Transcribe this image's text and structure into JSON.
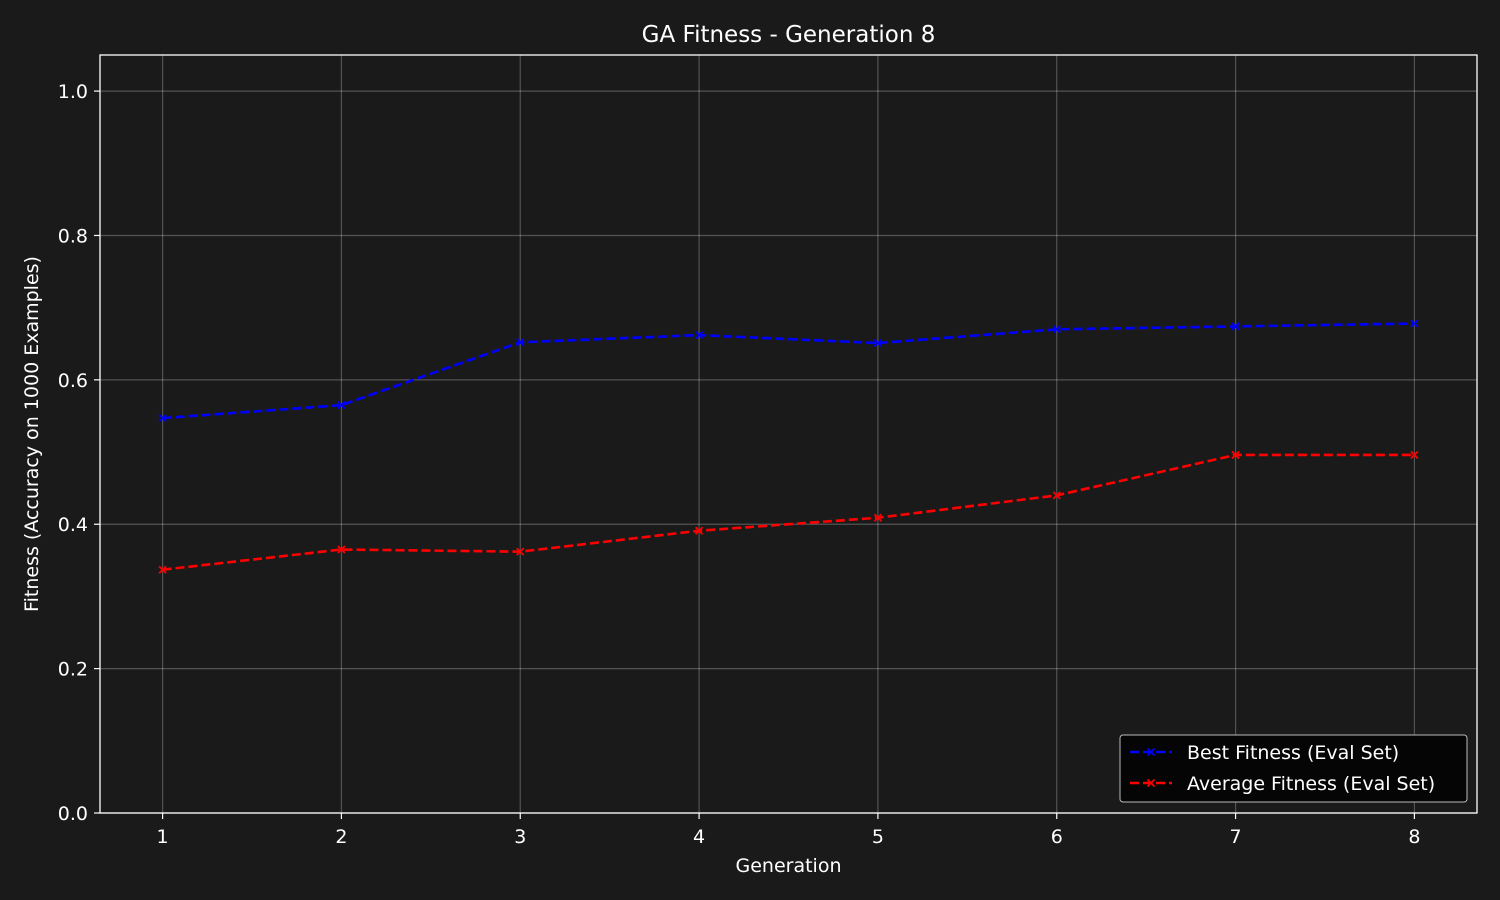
{
  "chart_data": {
    "type": "line",
    "title": "GA Fitness - Generation 8",
    "xlabel": "Generation",
    "ylabel": "Fitness (Accuracy on 1000 Examples)",
    "x": [
      1,
      2,
      3,
      4,
      5,
      6,
      7,
      8
    ],
    "x_ticks": [
      "1",
      "2",
      "3",
      "4",
      "5",
      "6",
      "7",
      "8"
    ],
    "y_ticks": [
      "0.0",
      "0.2",
      "0.4",
      "0.6",
      "0.8",
      "1.0"
    ],
    "xlim": [
      0.65,
      8.35
    ],
    "ylim": [
      0.0,
      1.05
    ],
    "grid": true,
    "legend_position": "bottom-right",
    "background": "#1a1a1a",
    "series": [
      {
        "name": "Best Fitness (Eval Set)",
        "color": "#0000ff",
        "linestyle": "dashed",
        "marker": "x",
        "values": [
          0.547,
          0.565,
          0.652,
          0.662,
          0.651,
          0.67,
          0.674,
          0.678
        ]
      },
      {
        "name": "Average Fitness (Eval Set)",
        "color": "#ff0000",
        "linestyle": "dashed",
        "marker": "x",
        "values": [
          0.337,
          0.365,
          0.362,
          0.391,
          0.409,
          0.44,
          0.496,
          0.496
        ]
      }
    ]
  }
}
